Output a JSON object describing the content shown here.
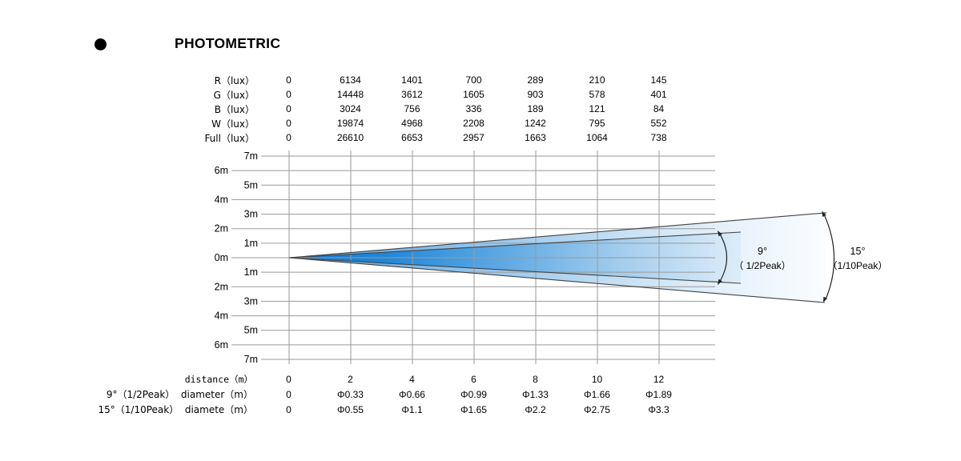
{
  "title": {
    "text": "PHOTOMETRIC"
  },
  "colors": {
    "beam_dark": "#0d78d3",
    "beam_mid": "#5ea9e3",
    "beam_light": "#f7fbff",
    "grid_line": "#9a9a9a",
    "beam_edge": "#444444",
    "text": "#000000"
  },
  "lux_table": {
    "rows": [
      {
        "label": "R（lux）",
        "values": [
          "0",
          "6134",
          "1401",
          "700",
          "289",
          "210",
          "145"
        ]
      },
      {
        "label": "G（lux）",
        "values": [
          "0",
          "14448",
          "3612",
          "1605",
          "903",
          "578",
          "401"
        ]
      },
      {
        "label": "B（lux）",
        "values": [
          "0",
          "3024",
          "756",
          "336",
          "189",
          "121",
          "84"
        ]
      },
      {
        "label": "W（lux）",
        "values": [
          "0",
          "19874",
          "4968",
          "2208",
          "1242",
          "795",
          "552"
        ]
      },
      {
        "label": "Full（lux）",
        "values": [
          "0",
          "26610",
          "6653",
          "2957",
          "1663",
          "1064",
          "738"
        ]
      }
    ]
  },
  "axis": {
    "left_labels_inner": [
      "7m",
      "5m",
      "3m",
      "1m",
      "1m",
      "3m",
      "5m",
      "7m"
    ],
    "left_labels_outer": [
      "6m",
      "4m",
      "2m",
      "0m",
      "2m",
      "4m",
      "6m"
    ]
  },
  "beam": {
    "inner_angle_label": "9°",
    "inner_angle_sub": "（ 1/2Peak）",
    "outer_angle_label": "15°",
    "outer_angle_sub": "（1/10Peak）"
  },
  "distance_table": {
    "rows": [
      {
        "label": "distance（m）",
        "mono": true,
        "values": [
          "0",
          "2",
          "4",
          "6",
          "8",
          "10",
          "12"
        ]
      },
      {
        "label": "9°（1/2Peak）  diameter（m）",
        "values": [
          "0",
          "Φ0.33",
          "Φ0.66",
          "Φ0.99",
          "Φ1.33",
          "Φ1.66",
          "Φ1.89"
        ]
      },
      {
        "label": "15°（1/10Peak）  diamete（m）",
        "values": [
          "0",
          "Φ0.55",
          "Φ1.1",
          "Φ1.65",
          "Φ2.2",
          "Φ2.75",
          "Φ3.3"
        ]
      }
    ]
  },
  "chart_data": {
    "type": "table",
    "title": "PHOTOMETRIC",
    "x": [
      0,
      2,
      4,
      6,
      8,
      10,
      12
    ],
    "x_label": "distance (m)",
    "series": [
      {
        "name": "R (lux)",
        "values": [
          0,
          6134,
          1401,
          700,
          289,
          210,
          145
        ]
      },
      {
        "name": "G (lux)",
        "values": [
          0,
          14448,
          3612,
          1605,
          903,
          578,
          401
        ]
      },
      {
        "name": "B (lux)",
        "values": [
          0,
          3024,
          756,
          336,
          189,
          121,
          84
        ]
      },
      {
        "name": "W (lux)",
        "values": [
          0,
          19874,
          4968,
          2208,
          1242,
          795,
          552
        ]
      },
      {
        "name": "Full (lux)",
        "values": [
          0,
          26610,
          6653,
          2957,
          1663,
          1064,
          738
        ]
      },
      {
        "name": "9° (1/2Peak) diameter (m)",
        "values": [
          0,
          0.33,
          0.66,
          0.99,
          1.33,
          1.66,
          1.89
        ]
      },
      {
        "name": "15° (1/10Peak) diameter (m)",
        "values": [
          0,
          0.55,
          1.1,
          1.65,
          2.2,
          2.75,
          3.3
        ]
      }
    ],
    "beam_angles": [
      {
        "angle": 9,
        "label": "9°",
        "peak": "1/2Peak"
      },
      {
        "angle": 15,
        "label": "15°",
        "peak": "1/10Peak"
      }
    ],
    "y_axis_meters_above": [
      7,
      6,
      5,
      4,
      3,
      2,
      1,
      0
    ],
    "y_axis_meters_below": [
      1,
      2,
      3,
      4,
      5,
      6,
      7
    ],
    "grid": true,
    "legend_position": "none"
  }
}
